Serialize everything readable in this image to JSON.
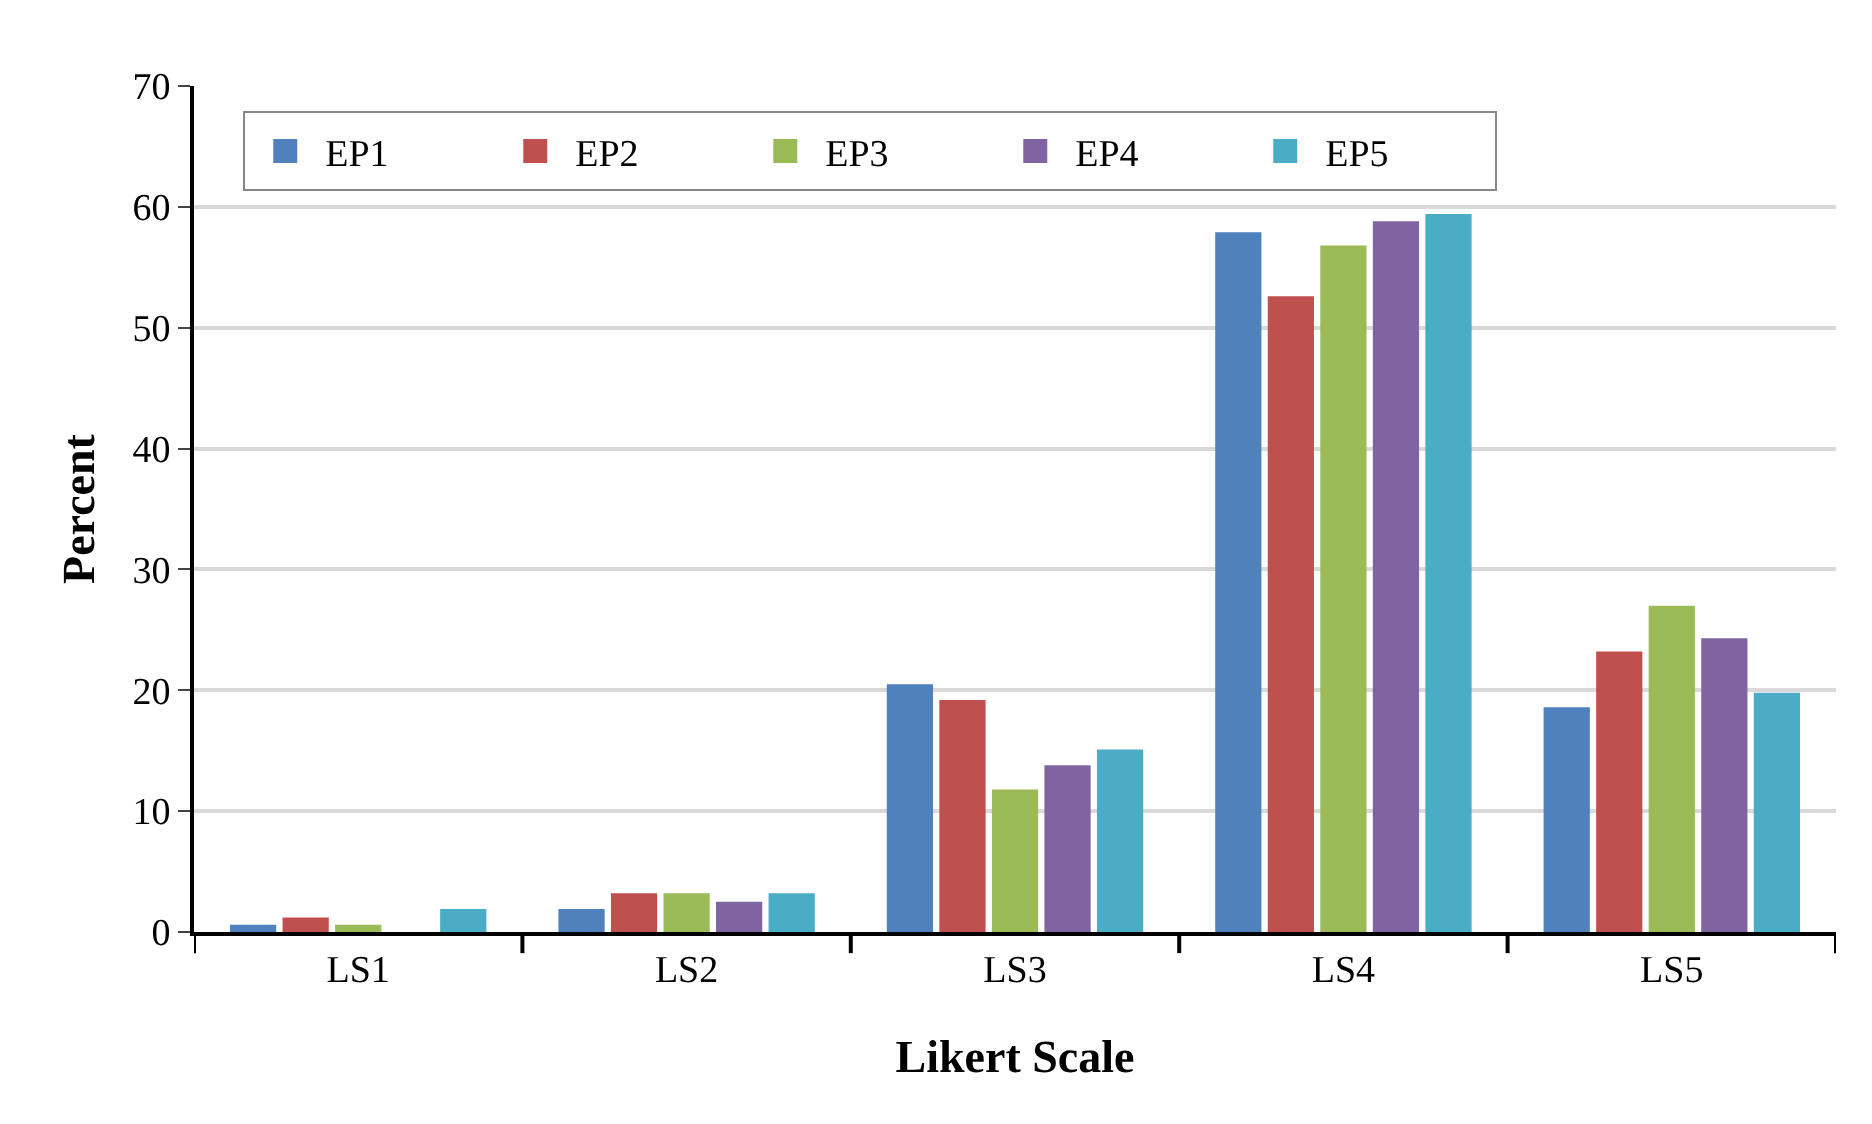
{
  "chart_data": {
    "type": "bar",
    "xlabel": "Likert Scale",
    "ylabel": "Percent",
    "categories": [
      "LS1",
      "LS2",
      "LS3",
      "LS4",
      "LS5"
    ],
    "series": [
      {
        "name": "EP1",
        "color": "#4f81bd",
        "values": [
          0.6,
          1.9,
          20.5,
          57.9,
          18.6
        ]
      },
      {
        "name": "EP2",
        "color": "#c0504d",
        "values": [
          1.2,
          3.2,
          19.2,
          52.6,
          23.2
        ]
      },
      {
        "name": "EP3",
        "color": "#9bbb59",
        "values": [
          0.6,
          3.2,
          11.8,
          56.8,
          27.0
        ]
      },
      {
        "name": "EP4",
        "color": "#8064a2",
        "values": [
          0,
          2.5,
          13.8,
          58.8,
          24.3
        ]
      },
      {
        "name": "EP5",
        "color": "#4bacc6",
        "values": [
          1.9,
          3.2,
          15.1,
          59.4,
          19.8
        ]
      }
    ],
    "ylim": [
      0,
      70
    ],
    "yticks": [
      0,
      10,
      20,
      30,
      40,
      50,
      60,
      70
    ],
    "grid": "y",
    "legend": "top left"
  }
}
